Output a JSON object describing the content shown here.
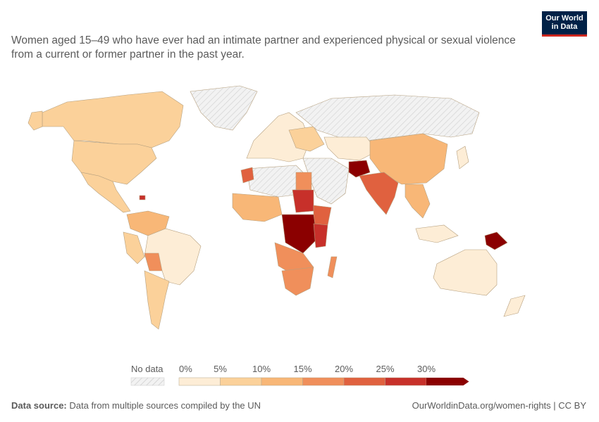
{
  "header": {
    "title": "Women aged 15–49 who have ever had an intimate partner and experienced physical or sexual violence from a current or former partner in the past year."
  },
  "logo": {
    "line1": "Our World",
    "line2": "in Data",
    "bg": "#002147",
    "accent": "#ce261e"
  },
  "legend": {
    "no_data_label": "No data",
    "ticks": [
      "0%",
      "5%",
      "10%",
      "15%",
      "20%",
      "25%",
      "30%"
    ],
    "colors": [
      "#fdedd6",
      "#fbd19a",
      "#f8b777",
      "#f08f5b",
      "#e0613f",
      "#c7302a",
      "#8b0000"
    ]
  },
  "footer": {
    "source_label": "Data source:",
    "source_text": "Data from multiple sources compiled by the UN",
    "link": "OurWorldinData.org/women-rights | CC BY"
  }
}
